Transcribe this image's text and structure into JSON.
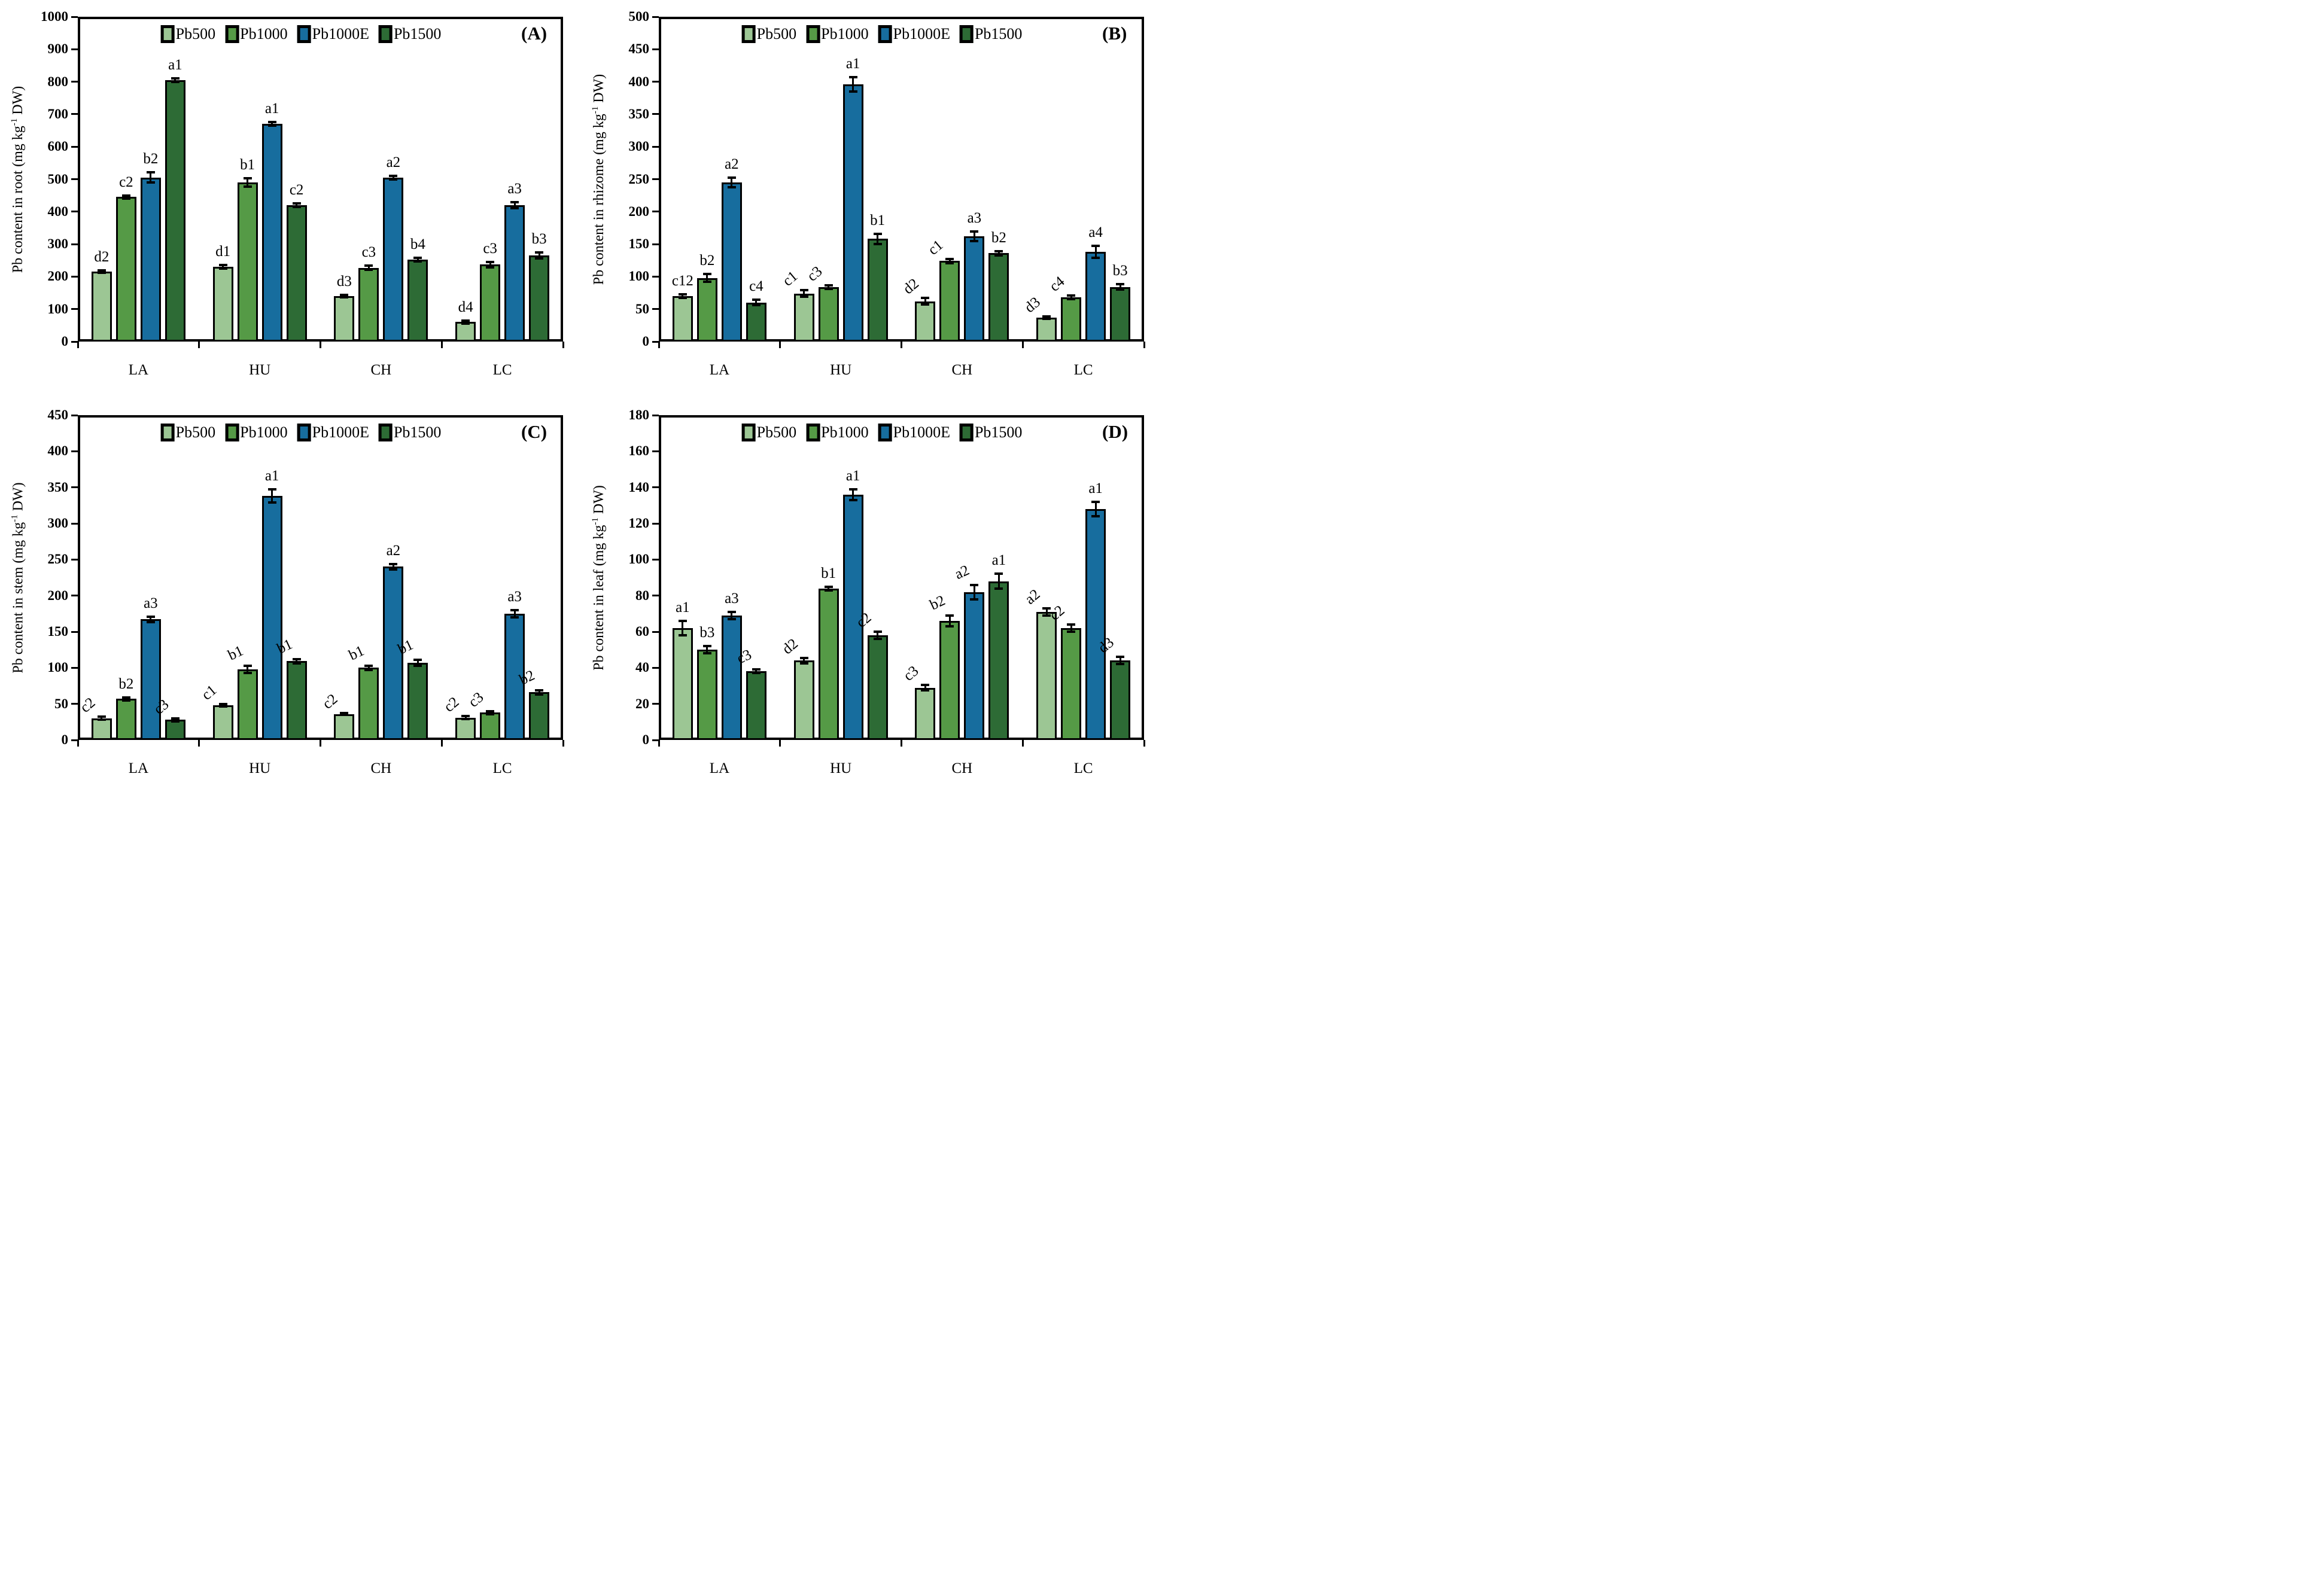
{
  "figure": {
    "legend": [
      {
        "name": "Pb500",
        "color": "#9CC694"
      },
      {
        "name": "Pb1000",
        "color": "#559A46"
      },
      {
        "name": "Pb1000E",
        "color": "#176D9E"
      },
      {
        "name": "Pb1500",
        "color": "#2D6B35"
      }
    ]
  },
  "chart_data": [
    {
      "type": "bar",
      "panel_letter": "(A)",
      "ylabel_pre": "Pb content in root (mg kg",
      "ylabel_sup": "-1",
      "ylabel_post": " DW)",
      "ylim": [
        0,
        1000
      ],
      "ystep": 100,
      "grid": false,
      "legend_position": "top-center",
      "categories": [
        "LA",
        "HU",
        "CH",
        "LC"
      ],
      "series": [
        "Pb500",
        "Pb1000",
        "Pb1000E",
        "Pb1500"
      ],
      "values": [
        [
          215,
          445,
          505,
          805
        ],
        [
          230,
          490,
          670,
          420
        ],
        [
          140,
          227,
          505,
          252
        ],
        [
          60,
          237,
          420,
          265
        ]
      ],
      "errors": [
        [
          4,
          5,
          16,
          6
        ],
        [
          5,
          13,
          6,
          5
        ],
        [
          4,
          6,
          6,
          5
        ],
        [
          4,
          8,
          9,
          9
        ]
      ],
      "sig_labels": [
        [
          "d2",
          "c2",
          "b2",
          "a1"
        ],
        [
          "d1",
          "b1",
          "a1",
          "c2"
        ],
        [
          "d3",
          "c3",
          "a2",
          "b4"
        ],
        [
          "d4",
          "c3",
          "a3",
          "b3"
        ]
      ],
      "sig_label_rotation_deg": [
        [
          0,
          0,
          0,
          0
        ],
        [
          0,
          0,
          0,
          0
        ],
        [
          0,
          0,
          0,
          0
        ],
        [
          0,
          0,
          0,
          0
        ]
      ]
    },
    {
      "type": "bar",
      "panel_letter": "(B)",
      "ylabel_pre": "Pb content in rhizome (mg kg",
      "ylabel_sup": "-1",
      "ylabel_post": " DW)",
      "ylim": [
        0,
        500
      ],
      "ystep": 50,
      "grid": false,
      "legend_position": "top-center",
      "categories": [
        "LA",
        "HU",
        "CH",
        "LC"
      ],
      "series": [
        "Pb500",
        "Pb1000",
        "Pb1000E",
        "Pb1500"
      ],
      "values": [
        [
          70,
          98,
          245,
          60
        ],
        [
          74,
          84,
          396,
          158
        ],
        [
          62,
          124,
          162,
          136
        ],
        [
          37,
          68,
          138,
          84
        ]
      ],
      "errors": [
        [
          3,
          6,
          7,
          4
        ],
        [
          5,
          3,
          11,
          8
        ],
        [
          5,
          3,
          7,
          3
        ],
        [
          2,
          3,
          9,
          4
        ]
      ],
      "sig_labels": [
        [
          "c12",
          "b2",
          "a2",
          "c4"
        ],
        [
          "c1",
          "c3",
          "a1",
          "b1"
        ],
        [
          "d2",
          "c1",
          "a3",
          "b2"
        ],
        [
          "d3",
          "c4",
          "a4",
          "b3"
        ]
      ],
      "sig_label_rotation_deg": [
        [
          0,
          0,
          0,
          0
        ],
        [
          -40,
          -40,
          0,
          0
        ],
        [
          -40,
          -40,
          0,
          0
        ],
        [
          -40,
          -40,
          0,
          0
        ]
      ]
    },
    {
      "type": "bar",
      "panel_letter": "(C)",
      "ylabel_pre": "Pb content in stem (mg kg",
      "ylabel_sup": "-1",
      "ylabel_post": " DW)",
      "ylim": [
        0,
        450
      ],
      "ystep": 50,
      "grid": false,
      "legend_position": "top-center",
      "categories": [
        "LA",
        "HU",
        "CH",
        "LC"
      ],
      "series": [
        "Pb500",
        "Pb1000",
        "Pb1000E",
        "Pb1500"
      ],
      "values": [
        [
          30,
          57,
          167,
          28
        ],
        [
          48,
          98,
          338,
          109
        ],
        [
          36,
          100,
          240,
          107
        ],
        [
          31,
          38,
          175,
          66
        ]
      ],
      "errors": [
        [
          2,
          2,
          4,
          2
        ],
        [
          2,
          5,
          9,
          3
        ],
        [
          1,
          3,
          4,
          4
        ],
        [
          2,
          2,
          5,
          3
        ]
      ],
      "sig_labels": [
        [
          "c2",
          "b2",
          "a3",
          "c3"
        ],
        [
          "c1",
          "b1",
          "a1",
          "b1"
        ],
        [
          "c2",
          "b1",
          "a2",
          "b1"
        ],
        [
          "c2",
          "c3",
          "a3",
          "b2"
        ]
      ],
      "sig_label_rotation_deg": [
        [
          -40,
          0,
          0,
          -40
        ],
        [
          -40,
          -25,
          0,
          -25
        ],
        [
          -40,
          -25,
          0,
          -25
        ],
        [
          -40,
          -40,
          0,
          -25
        ]
      ]
    },
    {
      "type": "bar",
      "panel_letter": "(D)",
      "ylabel_pre": "Pb content in leaf (mg kg",
      "ylabel_sup": "-1",
      "ylabel_post": " DW)",
      "ylim": [
        0,
        180
      ],
      "ystep": 20,
      "grid": false,
      "legend_position": "top-center",
      "categories": [
        "LA",
        "HU",
        "CH",
        "LC"
      ],
      "series": [
        "Pb500",
        "Pb1000",
        "Pb1000E",
        "Pb1500"
      ],
      "values": [
        [
          62,
          50,
          69,
          38
        ],
        [
          44,
          84,
          136,
          58
        ],
        [
          29,
          66,
          82,
          88
        ],
        [
          71,
          62,
          128,
          44
        ]
      ],
      "errors": [
        [
          4,
          2,
          2,
          1
        ],
        [
          1.5,
          1,
          3,
          2
        ],
        [
          1.5,
          3,
          4,
          4
        ],
        [
          2,
          2,
          4,
          2
        ]
      ],
      "sig_labels": [
        [
          "a1",
          "b3",
          "a3",
          "c3"
        ],
        [
          "d2",
          "b1",
          "a1",
          "c2"
        ],
        [
          "c3",
          "b2",
          "a2",
          "a1"
        ],
        [
          "a2",
          "c2",
          "a1",
          "d3"
        ]
      ],
      "sig_label_rotation_deg": [
        [
          0,
          0,
          0,
          -25
        ],
        [
          -40,
          0,
          0,
          -40
        ],
        [
          -40,
          -25,
          -25,
          0
        ],
        [
          -40,
          -40,
          0,
          -40
        ]
      ]
    }
  ]
}
